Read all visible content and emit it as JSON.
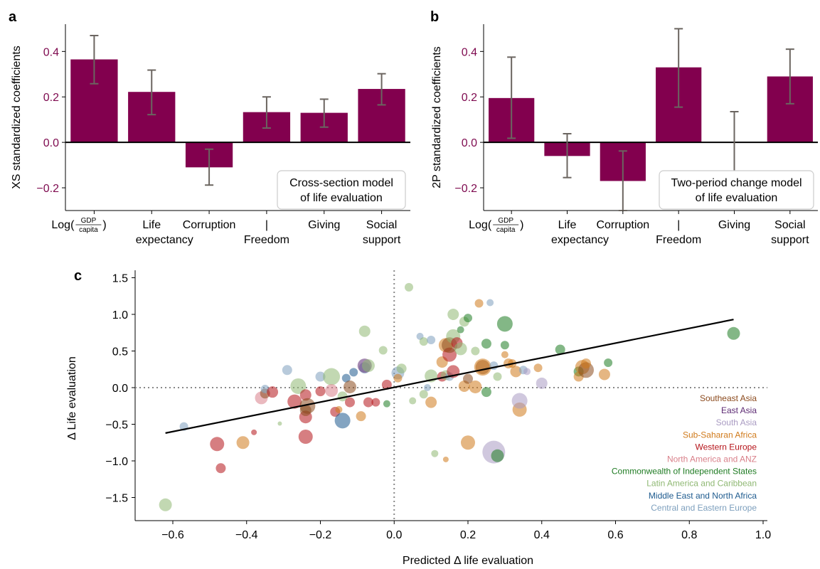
{
  "chart_data": [
    {
      "panel": "a",
      "type": "bar",
      "ylabel": "XS standardized coefficients",
      "ylim": [
        -0.3,
        0.52
      ],
      "yticks": [
        -0.2,
        0.0,
        0.2,
        0.4
      ],
      "ytick_labels": [
        "−0.2",
        "0.0",
        "0.2",
        "0.4"
      ],
      "ytick_color": "#7e0a4f",
      "bar_color": "#82004e",
      "error_color": "#6b6560",
      "categories": [
        {
          "line1": "Log(",
          "frac_num": "GDP",
          "frac_den": "capita",
          "line1_end": ")",
          "line2": ""
        },
        {
          "line1": "Life",
          "line2": "expectancy"
        },
        {
          "line1": "Corruption",
          "line2": ""
        },
        {
          "line1": "|",
          "line2": "Freedom"
        },
        {
          "line1": "Giving",
          "line2": ""
        },
        {
          "line1": "Social",
          "line2": "support"
        }
      ],
      "values": [
        0.365,
        0.222,
        -0.11,
        0.133,
        0.13,
        0.235
      ],
      "err_low": [
        0.258,
        0.122,
        -0.188,
        0.063,
        0.067,
        0.165
      ],
      "err_high": [
        0.47,
        0.318,
        -0.03,
        0.2,
        0.19,
        0.302
      ],
      "annotation": [
        "Cross-section model",
        "of life evaluation"
      ]
    },
    {
      "panel": "b",
      "type": "bar",
      "ylabel": "2P standardized coefficients",
      "ylim": [
        -0.3,
        0.52
      ],
      "yticks": [
        -0.2,
        0.0,
        0.2,
        0.4
      ],
      "ytick_labels": [
        "−0.2",
        "0.0",
        "0.2",
        "0.4"
      ],
      "ytick_color": "#7e0a4f",
      "bar_color": "#82004e",
      "error_color": "#6b6560",
      "categories": [
        {
          "line1": "Log(",
          "frac_num": "GDP",
          "frac_den": "capita",
          "line1_end": ")",
          "line2": ""
        },
        {
          "line1": "Life",
          "line2": "expectancy"
        },
        {
          "line1": "Corruption",
          "line2": ""
        },
        {
          "line1": "|",
          "line2": "Freedom"
        },
        {
          "line1": "Giving",
          "line2": ""
        },
        {
          "line1": "Social",
          "line2": "support"
        }
      ],
      "values": [
        0.195,
        -0.06,
        -0.17,
        0.33,
        0.0,
        0.29
      ],
      "err_low": [
        0.018,
        -0.155,
        -0.3,
        0.155,
        -0.13,
        0.17
      ],
      "err_high": [
        0.375,
        0.038,
        -0.038,
        0.5,
        0.135,
        0.41
      ],
      "annotation": [
        "Two-period change model",
        "of life evaluation"
      ]
    },
    {
      "panel": "c",
      "type": "scatter",
      "xlabel": "Predicted Δ life evaluation",
      "ylabel": "Δ Life evaluation",
      "xlim": [
        -0.7,
        1.0
      ],
      "ylim": [
        -1.75,
        1.55
      ],
      "xticks": [
        -0.6,
        -0.4,
        -0.2,
        0.0,
        0.2,
        0.4,
        0.6,
        0.8,
        1.0
      ],
      "xtick_labels": [
        "−0.6",
        "−0.4",
        "−0.2",
        "0.0",
        "0.2",
        "0.4",
        "0.6",
        "0.8",
        "1.0"
      ],
      "yticks": [
        -1.5,
        -1.0,
        -0.5,
        0.0,
        0.5,
        1.0,
        1.5
      ],
      "ytick_labels": [
        "−1.5",
        "−1.0",
        "−0.5",
        "0.0",
        "0.5",
        "1.0",
        "1.5"
      ],
      "fit_line": {
        "x": [
          -0.62,
          0.92
        ],
        "y": [
          -0.62,
          0.93
        ]
      },
      "legend": [
        {
          "name": "Southeast Asia",
          "color": "#8b4a1d"
        },
        {
          "name": "East Asia",
          "color": "#5c2a73"
        },
        {
          "name": "South Asia",
          "color": "#a99bc2"
        },
        {
          "name": "Sub-Saharan Africa",
          "color": "#d07a1b"
        },
        {
          "name": "Western Europe",
          "color": "#b5141a"
        },
        {
          "name": "North America and ANZ",
          "color": "#d9808a"
        },
        {
          "name": "Commonwealth of Independent States",
          "color": "#1e7b22"
        },
        {
          "name": "Latin America and Caribbean",
          "color": "#8fb873"
        },
        {
          "name": "Middle East and North Africa",
          "color": "#1d5a8e"
        },
        {
          "name": "Central and Eastern Europe",
          "color": "#7d9fbd"
        }
      ],
      "points": [
        {
          "x": -0.62,
          "y": -1.6,
          "s": 9,
          "g": 7
        },
        {
          "x": -0.57,
          "y": -0.53,
          "s": 6,
          "g": 9
        },
        {
          "x": -0.48,
          "y": -0.77,
          "s": 10,
          "g": 4
        },
        {
          "x": -0.47,
          "y": -1.1,
          "s": 7,
          "g": 4
        },
        {
          "x": -0.41,
          "y": -0.75,
          "s": 9,
          "g": 3
        },
        {
          "x": -0.38,
          "y": -0.61,
          "s": 4,
          "g": 4
        },
        {
          "x": -0.36,
          "y": -0.14,
          "s": 9,
          "g": 5
        },
        {
          "x": -0.35,
          "y": -0.08,
          "s": 7,
          "g": 0
        },
        {
          "x": -0.35,
          "y": -0.02,
          "s": 6,
          "g": 9
        },
        {
          "x": -0.33,
          "y": -0.06,
          "s": 8,
          "g": 4
        },
        {
          "x": -0.31,
          "y": -0.49,
          "s": 3,
          "g": 7
        },
        {
          "x": -0.29,
          "y": 0.24,
          "s": 7,
          "g": 9
        },
        {
          "x": -0.27,
          "y": -0.19,
          "s": 10,
          "g": 4
        },
        {
          "x": -0.26,
          "y": 0.02,
          "s": 11,
          "g": 7
        },
        {
          "x": -0.24,
          "y": -0.1,
          "s": 8,
          "g": 4
        },
        {
          "x": -0.24,
          "y": -0.4,
          "s": 9,
          "g": 4
        },
        {
          "x": -0.24,
          "y": -0.31,
          "s": 8,
          "g": 0
        },
        {
          "x": -0.235,
          "y": -0.25,
          "s": 11,
          "g": 0
        },
        {
          "x": -0.24,
          "y": -0.67,
          "s": 10,
          "g": 4
        },
        {
          "x": -0.2,
          "y": 0.15,
          "s": 7,
          "g": 9
        },
        {
          "x": -0.2,
          "y": -0.05,
          "s": 7,
          "g": 4
        },
        {
          "x": -0.17,
          "y": 0.15,
          "s": 12,
          "g": 7
        },
        {
          "x": -0.17,
          "y": -0.04,
          "s": 9,
          "g": 5
        },
        {
          "x": -0.16,
          "y": -0.33,
          "s": 7,
          "g": 4
        },
        {
          "x": -0.15,
          "y": -0.3,
          "s": 5,
          "g": 3
        },
        {
          "x": -0.14,
          "y": -0.12,
          "s": 7,
          "g": 7
        },
        {
          "x": -0.14,
          "y": -0.45,
          "s": 11,
          "g": 8
        },
        {
          "x": -0.13,
          "y": 0.13,
          "s": 6,
          "g": 8
        },
        {
          "x": -0.12,
          "y": 0.01,
          "s": 9,
          "g": 0
        },
        {
          "x": -0.12,
          "y": -0.2,
          "s": 7,
          "g": 4
        },
        {
          "x": -0.11,
          "y": 0.21,
          "s": 6,
          "g": 8
        },
        {
          "x": -0.09,
          "y": -0.39,
          "s": 7,
          "g": 3
        },
        {
          "x": -0.08,
          "y": 0.77,
          "s": 8,
          "g": 7
        },
        {
          "x": -0.08,
          "y": 0.27,
          "s": 8,
          "g": 9
        },
        {
          "x": -0.08,
          "y": 0.3,
          "s": 10,
          "g": 1
        },
        {
          "x": -0.07,
          "y": 0.3,
          "s": 9,
          "g": 7
        },
        {
          "x": -0.07,
          "y": -0.2,
          "s": 7,
          "g": 4
        },
        {
          "x": -0.05,
          "y": -0.2,
          "s": 6,
          "g": 4
        },
        {
          "x": -0.03,
          "y": 0.51,
          "s": 6,
          "g": 7
        },
        {
          "x": -0.02,
          "y": -0.22,
          "s": 5,
          "g": 6
        },
        {
          "x": -0.02,
          "y": 0.04,
          "s": 7,
          "g": 4
        },
        {
          "x": 0.01,
          "y": 0.2,
          "s": 9,
          "g": 9
        },
        {
          "x": 0.01,
          "y": 0.13,
          "s": 6,
          "g": 3
        },
        {
          "x": 0.02,
          "y": 0.26,
          "s": 7,
          "g": 7
        },
        {
          "x": 0.04,
          "y": 1.37,
          "s": 6,
          "g": 7
        },
        {
          "x": 0.05,
          "y": -0.18,
          "s": 5,
          "g": 7
        },
        {
          "x": 0.07,
          "y": 0.7,
          "s": 5,
          "g": 9
        },
        {
          "x": 0.08,
          "y": 0.63,
          "s": 6,
          "g": 7
        },
        {
          "x": 0.08,
          "y": -0.09,
          "s": 6,
          "g": 7
        },
        {
          "x": 0.09,
          "y": 0.0,
          "s": 5,
          "g": 9
        },
        {
          "x": 0.1,
          "y": 0.65,
          "s": 6,
          "g": 9
        },
        {
          "x": 0.1,
          "y": -0.2,
          "s": 8,
          "g": 3
        },
        {
          "x": 0.1,
          "y": 0.16,
          "s": 9,
          "g": 7
        },
        {
          "x": 0.11,
          "y": -0.9,
          "s": 5,
          "g": 7
        },
        {
          "x": 0.13,
          "y": 0.35,
          "s": 8,
          "g": 3
        },
        {
          "x": 0.13,
          "y": 0.15,
          "s": 7,
          "g": 4
        },
        {
          "x": 0.14,
          "y": 0.58,
          "s": 10,
          "g": 3
        },
        {
          "x": 0.14,
          "y": -0.98,
          "s": 4,
          "g": 3
        },
        {
          "x": 0.15,
          "y": 0.45,
          "s": 10,
          "g": 4
        },
        {
          "x": 0.15,
          "y": 0.58,
          "s": 11,
          "g": 0
        },
        {
          "x": 0.14,
          "y": 0.17,
          "s": 7,
          "g": 7
        },
        {
          "x": 0.15,
          "y": 0.15,
          "s": 6,
          "g": 9
        },
        {
          "x": 0.16,
          "y": 0.7,
          "s": 10,
          "g": 7
        },
        {
          "x": 0.16,
          "y": 0.22,
          "s": 9,
          "g": 4
        },
        {
          "x": 0.16,
          "y": 1.0,
          "s": 8,
          "g": 7
        },
        {
          "x": 0.17,
          "y": 0.61,
          "s": 8,
          "g": 4
        },
        {
          "x": 0.18,
          "y": 0.79,
          "s": 5,
          "g": 6
        },
        {
          "x": 0.18,
          "y": 0.53,
          "s": 9,
          "g": 7
        },
        {
          "x": 0.19,
          "y": 0.9,
          "s": 7,
          "g": 7
        },
        {
          "x": 0.19,
          "y": 0.02,
          "s": 8,
          "g": 3
        },
        {
          "x": 0.2,
          "y": 0.12,
          "s": 7,
          "g": 0
        },
        {
          "x": 0.2,
          "y": 0.95,
          "s": 6,
          "g": 6
        },
        {
          "x": 0.2,
          "y": -0.75,
          "s": 10,
          "g": 3
        },
        {
          "x": 0.22,
          "y": 0.5,
          "s": 6,
          "g": 7
        },
        {
          "x": 0.22,
          "y": 0.01,
          "s": 9,
          "g": 3
        },
        {
          "x": 0.23,
          "y": 1.15,
          "s": 6,
          "g": 3
        },
        {
          "x": 0.24,
          "y": 0.28,
          "s": 10,
          "g": 0
        },
        {
          "x": 0.24,
          "y": 0.28,
          "s": 12,
          "g": 3
        },
        {
          "x": 0.25,
          "y": 0.6,
          "s": 7,
          "g": 6
        },
        {
          "x": 0.25,
          "y": -0.06,
          "s": 7,
          "g": 6
        },
        {
          "x": 0.26,
          "y": 1.16,
          "s": 5,
          "g": 9
        },
        {
          "x": 0.27,
          "y": -0.88,
          "s": 16,
          "g": 2
        },
        {
          "x": 0.27,
          "y": 0.3,
          "s": 6,
          "g": 9
        },
        {
          "x": 0.28,
          "y": -0.93,
          "s": 9,
          "g": 6
        },
        {
          "x": 0.28,
          "y": 0.15,
          "s": 6,
          "g": 7
        },
        {
          "x": 0.3,
          "y": 0.87,
          "s": 11,
          "g": 6
        },
        {
          "x": 0.3,
          "y": 0.58,
          "s": 6,
          "g": 6
        },
        {
          "x": 0.3,
          "y": 0.45,
          "s": 5,
          "g": 3
        },
        {
          "x": 0.31,
          "y": 0.33,
          "s": 7,
          "g": 3
        },
        {
          "x": 0.32,
          "y": 0.33,
          "s": 6,
          "g": 3
        },
        {
          "x": 0.33,
          "y": 0.22,
          "s": 8,
          "g": 3
        },
        {
          "x": 0.34,
          "y": -0.3,
          "s": 10,
          "g": 3
        },
        {
          "x": 0.34,
          "y": -0.18,
          "s": 11,
          "g": 2
        },
        {
          "x": 0.35,
          "y": 0.24,
          "s": 6,
          "g": 9
        },
        {
          "x": 0.36,
          "y": 0.22,
          "s": 5,
          "g": 2
        },
        {
          "x": 0.39,
          "y": 0.27,
          "s": 6,
          "g": 3
        },
        {
          "x": 0.4,
          "y": 0.06,
          "s": 8,
          "g": 2
        },
        {
          "x": 0.45,
          "y": 0.52,
          "s": 7,
          "g": 6
        },
        {
          "x": 0.5,
          "y": 0.22,
          "s": 7,
          "g": 6
        },
        {
          "x": 0.5,
          "y": 0.15,
          "s": 7,
          "g": 3
        },
        {
          "x": 0.51,
          "y": 0.28,
          "s": 10,
          "g": 3
        },
        {
          "x": 0.52,
          "y": 0.24,
          "s": 11,
          "g": 0
        },
        {
          "x": 0.52,
          "y": 0.33,
          "s": 7,
          "g": 3
        },
        {
          "x": 0.57,
          "y": 0.18,
          "s": 8,
          "g": 3
        },
        {
          "x": 0.58,
          "y": 0.34,
          "s": 6,
          "g": 6
        },
        {
          "x": 0.92,
          "y": 0.74,
          "s": 9,
          "g": 6
        }
      ]
    }
  ]
}
